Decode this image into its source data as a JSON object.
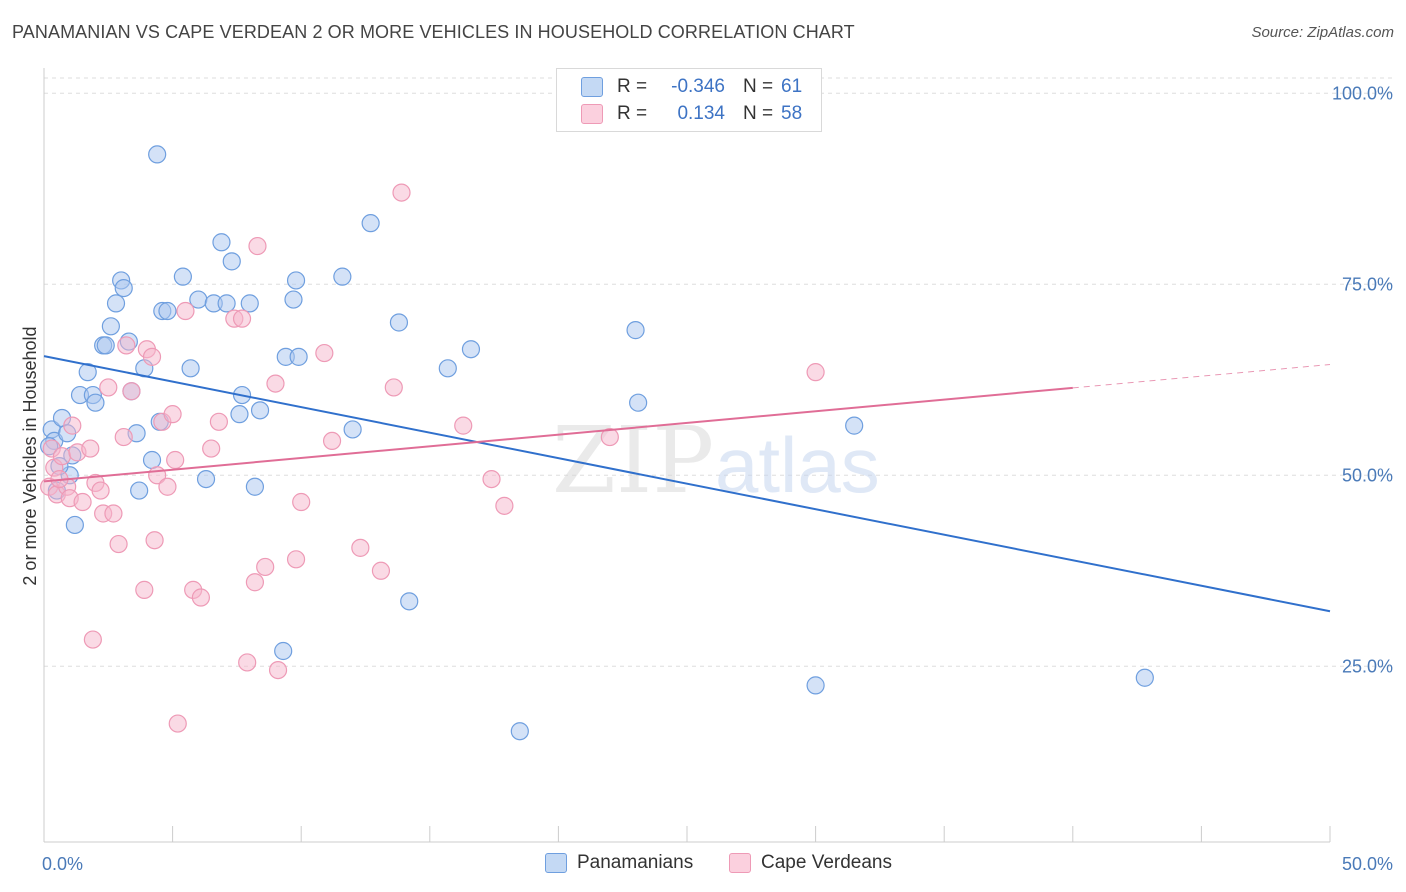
{
  "title": "PANAMANIAN VS CAPE VERDEAN 2 OR MORE VEHICLES IN HOUSEHOLD CORRELATION CHART",
  "source": "Source: ZipAtlas.com",
  "watermark": {
    "zip": "ZIP",
    "atlas": "atlas"
  },
  "legend": {
    "rows": [
      {
        "r_label": "R =",
        "r_value": "-0.346",
        "n_label": "N =",
        "n_value": "61",
        "color": "#a9c6ef"
      },
      {
        "r_label": "R =",
        "r_value": "0.134",
        "n_label": "N =",
        "n_value": "58",
        "color": "#f6b6cb"
      }
    ]
  },
  "chart_data": {
    "type": "scatter",
    "title": "PANAMANIAN VS CAPE VERDEAN 2 OR MORE VEHICLES IN HOUSEHOLD CORRELATION CHART",
    "xlabel": "",
    "ylabel": "2 or more Vehicles in Household",
    "xlim": [
      0,
      50
    ],
    "ylim": [
      2,
      102
    ],
    "x_tick_labels": [
      "0.0%",
      "50.0%"
    ],
    "y_ticks": [
      25,
      50,
      75,
      100
    ],
    "y_tick_labels": [
      "25.0%",
      "50.0%",
      "75.0%",
      "100.0%"
    ],
    "grid": true,
    "legend_position": "bottom",
    "series": [
      {
        "name": "Panamanians",
        "color": "#6f9fdf",
        "fill": "#a9c6ef",
        "trend": {
          "x": [
            0,
            50
          ],
          "y": [
            65.6,
            32.2
          ],
          "dashed_from": null,
          "color": "#3070cc"
        },
        "points": [
          [
            0.3,
            56.0
          ],
          [
            0.4,
            54.5
          ],
          [
            0.5,
            48.0
          ],
          [
            0.7,
            57.5
          ],
          [
            0.9,
            55.5
          ],
          [
            1.0,
            50.0
          ],
          [
            1.2,
            43.5
          ],
          [
            1.4,
            60.5
          ],
          [
            1.7,
            63.5
          ],
          [
            1.9,
            60.5
          ],
          [
            2.0,
            59.5
          ],
          [
            2.3,
            67.0
          ],
          [
            2.4,
            67.0
          ],
          [
            2.6,
            69.5
          ],
          [
            2.8,
            72.5
          ],
          [
            3.0,
            75.5
          ],
          [
            3.1,
            74.5
          ],
          [
            3.3,
            67.5
          ],
          [
            3.4,
            61.0
          ],
          [
            3.6,
            55.5
          ],
          [
            3.7,
            48.0
          ],
          [
            3.9,
            64.0
          ],
          [
            4.2,
            52.0
          ],
          [
            4.4,
            92.0
          ],
          [
            4.5,
            57.0
          ],
          [
            4.6,
            71.5
          ],
          [
            4.8,
            71.5
          ],
          [
            5.4,
            76.0
          ],
          [
            5.7,
            64.0
          ],
          [
            6.0,
            73.0
          ],
          [
            6.3,
            49.5
          ],
          [
            6.6,
            72.5
          ],
          [
            6.9,
            80.5
          ],
          [
            7.1,
            72.5
          ],
          [
            7.3,
            78.0
          ],
          [
            7.6,
            58.0
          ],
          [
            7.7,
            60.5
          ],
          [
            8.0,
            72.5
          ],
          [
            8.2,
            48.5
          ],
          [
            8.4,
            58.5
          ],
          [
            9.3,
            27.0
          ],
          [
            9.4,
            65.5
          ],
          [
            9.7,
            73.0
          ],
          [
            9.8,
            75.5
          ],
          [
            9.9,
            65.5
          ],
          [
            11.6,
            76.0
          ],
          [
            12.0,
            56.0
          ],
          [
            12.7,
            83.0
          ],
          [
            13.8,
            70.0
          ],
          [
            14.2,
            33.5
          ],
          [
            15.7,
            64.0
          ],
          [
            16.6,
            66.5
          ],
          [
            18.5,
            16.5
          ],
          [
            23.0,
            69.0
          ],
          [
            23.1,
            59.5
          ],
          [
            30.0,
            22.5
          ],
          [
            31.5,
            56.5
          ],
          [
            42.8,
            23.5
          ],
          [
            0.2,
            53.8
          ],
          [
            0.6,
            51.2
          ],
          [
            1.1,
            52.6
          ]
        ]
      },
      {
        "name": "Cape Verdeans",
        "color": "#ee9ab6",
        "fill": "#f6b6cb",
        "trend": {
          "x": [
            0,
            50
          ],
          "y": [
            49.2,
            64.5
          ],
          "dashed_from": 40,
          "color": "#e06d96"
        },
        "points": [
          [
            0.2,
            48.5
          ],
          [
            0.3,
            53.5
          ],
          [
            0.4,
            51.0
          ],
          [
            0.5,
            47.5
          ],
          [
            0.7,
            52.5
          ],
          [
            0.9,
            48.5
          ],
          [
            1.0,
            47.0
          ],
          [
            1.1,
            56.5
          ],
          [
            1.3,
            53.0
          ],
          [
            1.5,
            46.5
          ],
          [
            1.8,
            53.5
          ],
          [
            1.9,
            28.5
          ],
          [
            2.0,
            49.0
          ],
          [
            2.2,
            48.0
          ],
          [
            2.3,
            45.0
          ],
          [
            2.5,
            61.5
          ],
          [
            2.7,
            45.0
          ],
          [
            2.9,
            41.0
          ],
          [
            3.1,
            55.0
          ],
          [
            3.2,
            67.0
          ],
          [
            3.4,
            61.0
          ],
          [
            3.9,
            35.0
          ],
          [
            4.0,
            66.5
          ],
          [
            4.2,
            65.5
          ],
          [
            4.3,
            41.5
          ],
          [
            4.4,
            50.0
          ],
          [
            4.6,
            57.0
          ],
          [
            4.8,
            48.5
          ],
          [
            5.0,
            58.0
          ],
          [
            5.1,
            52.0
          ],
          [
            5.2,
            17.5
          ],
          [
            5.5,
            71.5
          ],
          [
            5.8,
            35.0
          ],
          [
            6.1,
            34.0
          ],
          [
            6.5,
            53.5
          ],
          [
            6.8,
            57.0
          ],
          [
            7.4,
            70.5
          ],
          [
            7.7,
            70.5
          ],
          [
            7.9,
            25.5
          ],
          [
            8.2,
            36.0
          ],
          [
            8.3,
            80.0
          ],
          [
            8.6,
            38.0
          ],
          [
            9.0,
            62.0
          ],
          [
            9.1,
            24.5
          ],
          [
            9.8,
            39.0
          ],
          [
            10.0,
            46.5
          ],
          [
            10.9,
            66.0
          ],
          [
            11.2,
            54.5
          ],
          [
            12.3,
            40.5
          ],
          [
            13.1,
            37.5
          ],
          [
            13.6,
            61.5
          ],
          [
            13.9,
            87.0
          ],
          [
            16.3,
            56.5
          ],
          [
            17.4,
            49.5
          ],
          [
            17.9,
            46.0
          ],
          [
            22.0,
            55.0
          ],
          [
            30.0,
            63.5
          ],
          [
            0.6,
            49.5
          ]
        ]
      }
    ]
  }
}
